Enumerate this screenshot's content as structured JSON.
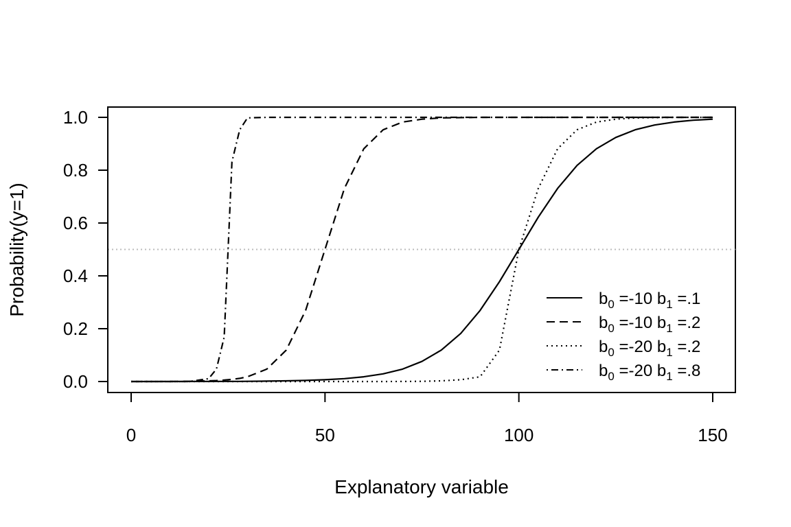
{
  "chart_data": {
    "type": "line",
    "title": "",
    "xlabel": "Explanatory variable",
    "ylabel": "Probability(y=1)",
    "xlim": [
      0,
      150
    ],
    "ylim": [
      0,
      1
    ],
    "x_ticks": [
      0,
      50,
      100,
      150
    ],
    "x_tick_labels": [
      "0",
      "50",
      "100",
      "150"
    ],
    "y_ticks": [
      0,
      0.2,
      0.4,
      0.6,
      0.8,
      1.0
    ],
    "y_tick_labels": [
      "0.0",
      "0.2",
      "0.4",
      "0.6",
      "0.8",
      "1.0"
    ],
    "reference_line": {
      "y": 0.5,
      "style": "dotted",
      "color": "#bbbbbb"
    },
    "legend_position": "bottom-right",
    "grid": false,
    "x": [
      0,
      5,
      10,
      15,
      20,
      22,
      24,
      25,
      26,
      28,
      30,
      35,
      40,
      45,
      50,
      55,
      60,
      65,
      70,
      75,
      80,
      85,
      90,
      95,
      100,
      105,
      110,
      115,
      120,
      125,
      130,
      135,
      140,
      145,
      150
    ],
    "series": [
      {
        "label": {
          "b0": "=-10",
          "b1": "=.1"
        },
        "dash": "solid",
        "color": "#000000",
        "values": [
          5e-05,
          7e-05,
          0.00012,
          0.0002,
          0.0003,
          0.0004,
          0.0004,
          0.0005,
          0.0005,
          0.0006,
          0.0009,
          0.0015,
          0.0025,
          0.0041,
          0.0067,
          0.011,
          0.018,
          0.029,
          0.047,
          0.076,
          0.119,
          0.182,
          0.269,
          0.378,
          0.5,
          0.622,
          0.731,
          0.818,
          0.881,
          0.924,
          0.953,
          0.971,
          0.982,
          0.989,
          0.993
        ]
      },
      {
        "label": {
          "b0": "=-10",
          "b1": "=.2"
        },
        "dash": "dashed",
        "color": "#000000",
        "values": [
          0.0001,
          0.0001,
          0.0003,
          0.0009,
          0.0025,
          0.0037,
          0.0055,
          0.0067,
          0.0082,
          0.012,
          0.018,
          0.047,
          0.119,
          0.269,
          0.5,
          0.731,
          0.881,
          0.953,
          0.982,
          0.993,
          0.998,
          0.999,
          1.0,
          1.0,
          1.0,
          1.0,
          1.0,
          1.0,
          1.0,
          1.0,
          1.0,
          1.0,
          1.0,
          1.0,
          1.0
        ]
      },
      {
        "label": {
          "b0": "=-20",
          "b1": "=.2"
        },
        "dash": "dotted",
        "color": "#000000",
        "values": [
          0.0,
          0.0,
          0.0,
          0.0,
          0.0,
          0.0,
          0.0,
          0.0,
          0.0,
          0.0,
          0.0,
          0.0,
          0.0,
          0.0,
          0.0,
          0.0,
          0.0,
          0.0001,
          0.0003,
          0.0009,
          0.0025,
          0.0067,
          0.018,
          0.119,
          0.5,
          0.731,
          0.881,
          0.953,
          0.982,
          0.993,
          0.998,
          0.999,
          1.0,
          1.0,
          1.0
        ]
      },
      {
        "label": {
          "b0": "=-20",
          "b1": "=.8"
        },
        "dash": "dashdot",
        "color": "#000000",
        "values": [
          0.0,
          0.0,
          0.0,
          0.0,
          0.011,
          0.047,
          0.168,
          0.5,
          0.832,
          0.953,
          0.998,
          1.0,
          1.0,
          1.0,
          1.0,
          1.0,
          1.0,
          1.0,
          1.0,
          1.0,
          1.0,
          1.0,
          1.0,
          1.0,
          1.0,
          1.0,
          1.0,
          1.0,
          1.0,
          1.0,
          1.0,
          1.0,
          1.0,
          1.0,
          1.0
        ]
      }
    ]
  }
}
